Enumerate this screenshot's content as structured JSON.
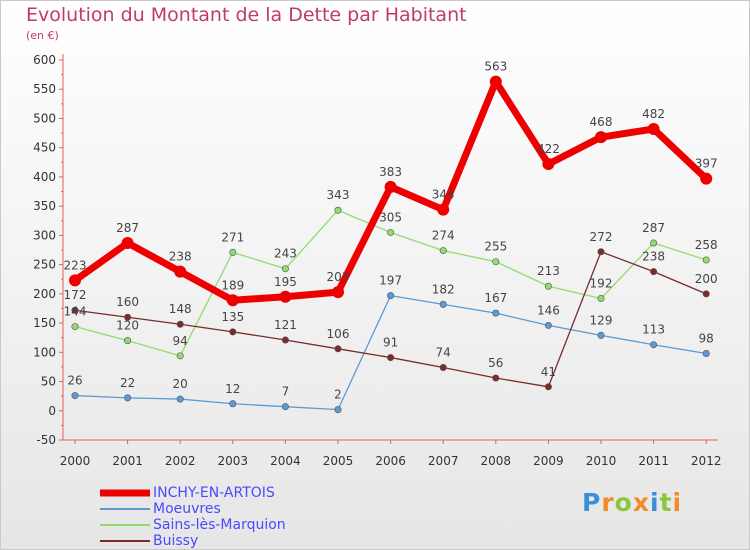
{
  "header": {
    "title": "Evolution du Montant de la Dette par Habitant",
    "subtitle": "(en €)"
  },
  "brand": {
    "letters": [
      "P",
      "r",
      "o",
      "x",
      "i",
      "t",
      "i"
    ],
    "colors": [
      "#3a8fd8",
      "#f28c28",
      "#8cc63f",
      "#f28c28",
      "#3a8fd8",
      "#8cc63f",
      "#f28c28"
    ]
  },
  "chart_data": {
    "type": "line",
    "x": [
      2000,
      2001,
      2002,
      2003,
      2004,
      2005,
      2006,
      2007,
      2008,
      2009,
      2010,
      2011,
      2012
    ],
    "xticks": [
      "2000",
      "2001",
      "2002",
      "2003",
      "2004",
      "2005",
      "2006",
      "2007",
      "2008",
      "2009",
      "2010",
      "2011",
      "2012"
    ],
    "yticks": [
      "-50",
      "0",
      "50",
      "100",
      "150",
      "200",
      "250",
      "300",
      "350",
      "400",
      "450",
      "500",
      "550",
      "600"
    ],
    "ylim": [
      -50,
      600
    ],
    "grid": false,
    "legend_position": "bottom-left",
    "series": [
      {
        "name": "INCHY-EN-ARTOIS",
        "color": "#ee0000",
        "values": [
          223,
          287,
          238,
          189,
          195,
          203,
          383,
          344,
          563,
          422,
          468,
          482,
          397
        ],
        "labels": [
          "223",
          "287",
          "238",
          "189",
          "195",
          "203",
          "383",
          "344",
          "563",
          "422",
          "468",
          "482",
          "397"
        ]
      },
      {
        "name": "Moeuvres",
        "color": "#5b9bd5",
        "values": [
          26,
          22,
          20,
          12,
          7,
          2,
          197,
          182,
          167,
          146,
          129,
          113,
          98
        ],
        "labels": [
          "26",
          "22",
          "20",
          "12",
          "7",
          "2",
          "197",
          "182",
          "167",
          "146",
          "129",
          "113",
          "98"
        ]
      },
      {
        "name": "Sains-lès-Marquion",
        "color": "#90dc70",
        "values": [
          144,
          120,
          94,
          271,
          243,
          343,
          305,
          274,
          255,
          213,
          192,
          287,
          258
        ],
        "labels": [
          "144",
          "120",
          "94",
          "271",
          "243",
          "343",
          "305",
          "274",
          "255",
          "213",
          "192",
          "287",
          "258"
        ]
      },
      {
        "name": "Buissy",
        "color": "#7d2a2a",
        "values": [
          172,
          160,
          148,
          135,
          121,
          106,
          91,
          74,
          56,
          41,
          272,
          238,
          200
        ],
        "labels": [
          "172",
          "160",
          "148",
          "135",
          "121",
          "106",
          "91",
          "74",
          "56",
          "41",
          "272",
          "238",
          "200"
        ]
      }
    ]
  }
}
